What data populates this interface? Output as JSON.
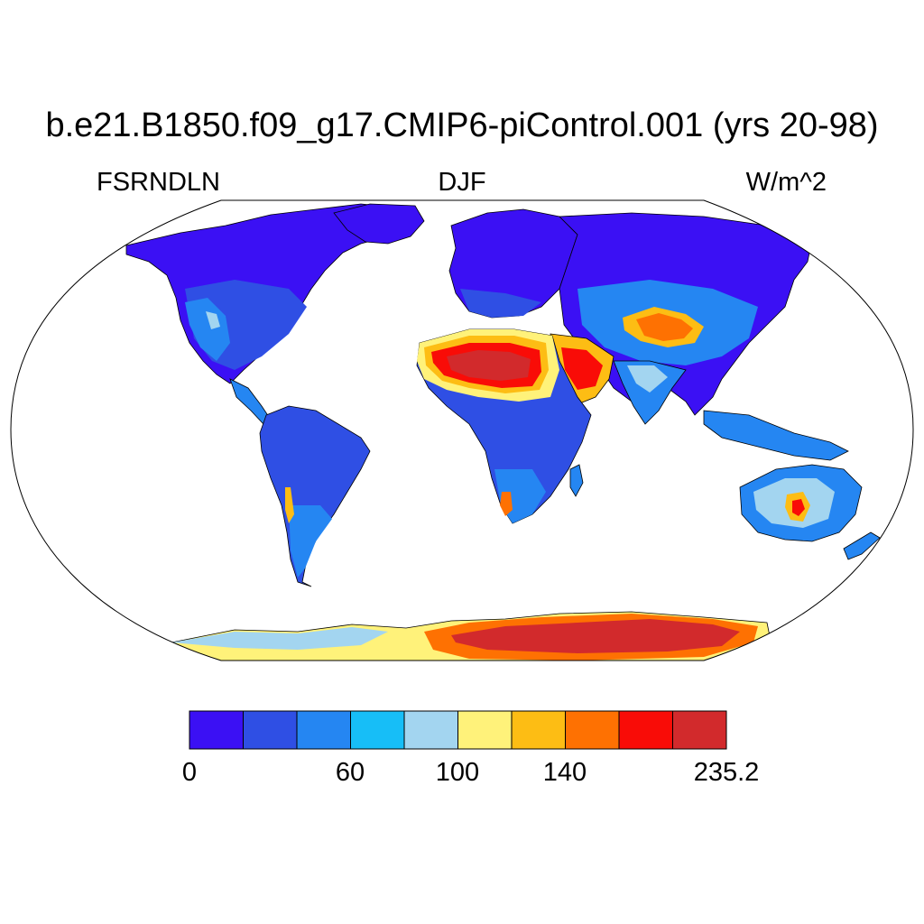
{
  "title": "b.e21.B1850.f09_g17.CMIP6-piControl.001 (yrs 20-98)",
  "subtitle": {
    "left": "FSRNDLN",
    "center": "DJF",
    "right": "W/m^2"
  },
  "colorbar": {
    "colors": [
      "#3b10f4",
      "#2f4fe4",
      "#2586f2",
      "#17bef7",
      "#a3d5f0",
      "#fff27a",
      "#fdbd14",
      "#fe7102",
      "#f90c07",
      "#d22a2c"
    ],
    "tick_labels": [
      "0",
      "60",
      "100",
      "140",
      "235.2"
    ]
  },
  "palette": {
    "ocean": "#ffffff",
    "coastline": "#000000"
  }
}
